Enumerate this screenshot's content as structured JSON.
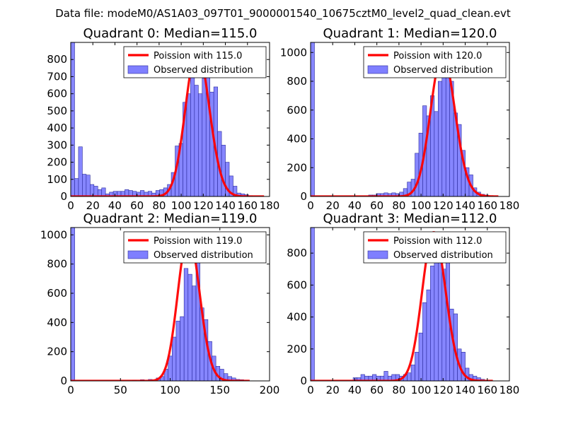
{
  "figure_title": "Data file: modeM0/AS1A03_097T01_9000001540_10675cztM0_level2_quad_clean.evt",
  "colors": {
    "bar_fill": "#7f7fff",
    "bar_edge": "#2a2a9a",
    "poisson_line": "#ff0000",
    "axes": "#000000",
    "background": "#ffffff"
  },
  "chart_data": [
    {
      "type": "bar",
      "title": "Quadrant 0: Median=115.0",
      "median": 115.0,
      "xlim": [
        0,
        180
      ],
      "ylim": [
        0,
        900
      ],
      "xticks": [
        0,
        20,
        40,
        60,
        80,
        100,
        120,
        140,
        160,
        180
      ],
      "yticks": [
        0,
        100,
        200,
        300,
        400,
        500,
        600,
        700,
        800
      ],
      "bin_width": 3.5,
      "bins": [
        [
          0,
          900
        ],
        [
          3.5,
          105
        ],
        [
          7,
          290
        ],
        [
          10.5,
          130
        ],
        [
          14,
          125
        ],
        [
          17.5,
          70
        ],
        [
          21,
          60
        ],
        [
          24.5,
          40
        ],
        [
          28,
          50
        ],
        [
          31.5,
          15
        ],
        [
          35,
          25
        ],
        [
          38.5,
          30
        ],
        [
          42,
          30
        ],
        [
          45.5,
          30
        ],
        [
          49,
          40
        ],
        [
          52.5,
          35
        ],
        [
          56,
          30
        ],
        [
          59.5,
          25
        ],
        [
          63,
          35
        ],
        [
          66.5,
          25
        ],
        [
          70,
          30
        ],
        [
          73.5,
          20
        ],
        [
          77,
          35
        ],
        [
          80.5,
          40
        ],
        [
          84,
          50
        ],
        [
          87.5,
          70
        ],
        [
          91,
          140
        ],
        [
          94.5,
          295
        ],
        [
          98,
          310
        ],
        [
          101.5,
          550
        ],
        [
          105,
          600
        ],
        [
          108.5,
          850
        ],
        [
          112,
          650
        ],
        [
          115.5,
          600
        ],
        [
          119,
          690
        ],
        [
          122.5,
          740
        ],
        [
          126,
          610
        ],
        [
          129.5,
          640
        ],
        [
          133,
          380
        ],
        [
          136.5,
          300
        ],
        [
          140,
          200
        ],
        [
          143.5,
          120
        ],
        [
          147,
          60
        ],
        [
          150.5,
          20
        ],
        [
          154,
          15
        ],
        [
          157.5,
          10
        ],
        [
          161,
          5
        ]
      ],
      "legend": {
        "line_label": "Poission with 115.0",
        "bar_label": "Observed distribution",
        "loc": "upper right"
      },
      "line": {
        "label": "Poission with 115.0",
        "mean": 115.0,
        "peak": 860,
        "x_range": [
          0,
          175
        ]
      }
    },
    {
      "type": "bar",
      "title": "Quadrant 1: Median=120.0",
      "median": 120.0,
      "xlim": [
        0,
        180
      ],
      "ylim": [
        0,
        1070
      ],
      "xticks": [
        0,
        20,
        40,
        60,
        80,
        100,
        120,
        140,
        160,
        180
      ],
      "yticks": [
        0,
        200,
        400,
        600,
        800,
        1000
      ],
      "bin_width": 3.5,
      "bins": [
        [
          0,
          1070
        ],
        [
          52.5,
          10
        ],
        [
          56,
          10
        ],
        [
          59.5,
          20
        ],
        [
          63,
          20
        ],
        [
          66.5,
          25
        ],
        [
          70,
          20
        ],
        [
          73.5,
          25
        ],
        [
          77,
          20
        ],
        [
          80.5,
          30
        ],
        [
          84,
          55
        ],
        [
          87.5,
          100
        ],
        [
          91,
          120
        ],
        [
          94.5,
          300
        ],
        [
          98,
          440
        ],
        [
          101.5,
          630
        ],
        [
          105,
          560
        ],
        [
          108.5,
          700
        ],
        [
          112,
          590
        ],
        [
          115.5,
          800
        ],
        [
          119,
          1000
        ],
        [
          122.5,
          920
        ],
        [
          126,
          800
        ],
        [
          129.5,
          580
        ],
        [
          133,
          500
        ],
        [
          136.5,
          320
        ],
        [
          140,
          200
        ],
        [
          143.5,
          150
        ],
        [
          147,
          60
        ],
        [
          150.5,
          30
        ],
        [
          154,
          15
        ],
        [
          157.5,
          10
        ]
      ],
      "legend": {
        "line_label": "Poission with 120.0",
        "bar_label": "Observed distribution",
        "loc": "upper right"
      },
      "line": {
        "label": "Poission with 120.0",
        "mean": 120.0,
        "peak": 990,
        "x_range": [
          0,
          170
        ]
      }
    },
    {
      "type": "bar",
      "title": "Quadrant 2: Median=119.0",
      "median": 119.0,
      "xlim": [
        0,
        200
      ],
      "ylim": [
        0,
        1050
      ],
      "xticks": [
        0,
        50,
        100,
        150,
        200
      ],
      "yticks": [
        0,
        200,
        400,
        600,
        800,
        1000
      ],
      "bin_width": 4,
      "bins": [
        [
          0,
          1050
        ],
        [
          62,
          5
        ],
        [
          70,
          8
        ],
        [
          78,
          10
        ],
        [
          86,
          20
        ],
        [
          90,
          30
        ],
        [
          94,
          80
        ],
        [
          98,
          170
        ],
        [
          102,
          300
        ],
        [
          106,
          410
        ],
        [
          110,
          440
        ],
        [
          114,
          770
        ],
        [
          118,
          730
        ],
        [
          122,
          650
        ],
        [
          126,
          850
        ],
        [
          130,
          500
        ],
        [
          134,
          420
        ],
        [
          138,
          270
        ],
        [
          142,
          170
        ],
        [
          146,
          100
        ],
        [
          150,
          80
        ],
        [
          154,
          50
        ],
        [
          158,
          30
        ],
        [
          162,
          20
        ],
        [
          166,
          10
        ],
        [
          170,
          8
        ],
        [
          174,
          5
        ]
      ],
      "legend": {
        "line_label": "Poission with 119.0",
        "bar_label": "Observed distribution",
        "loc": "upper right"
      },
      "line": {
        "label": "Poission with 119.0",
        "mean": 119.0,
        "peak": 1000,
        "x_range": [
          0,
          180
        ]
      }
    },
    {
      "type": "bar",
      "title": "Quadrant 3: Median=112.0",
      "median": 112.0,
      "xlim": [
        0,
        180
      ],
      "ylim": [
        0,
        960
      ],
      "xticks": [
        0,
        20,
        40,
        60,
        80,
        100,
        120,
        140,
        160,
        180
      ],
      "yticks": [
        0,
        200,
        400,
        600,
        800
      ],
      "bin_width": 3.5,
      "bins": [
        [
          0,
          960
        ],
        [
          38.5,
          20
        ],
        [
          42,
          20
        ],
        [
          45.5,
          40
        ],
        [
          49,
          30
        ],
        [
          52.5,
          30
        ],
        [
          56,
          40
        ],
        [
          59.5,
          30
        ],
        [
          63,
          30
        ],
        [
          66.5,
          60
        ],
        [
          70,
          30
        ],
        [
          73.5,
          40
        ],
        [
          77,
          40
        ],
        [
          80.5,
          30
        ],
        [
          84,
          40
        ],
        [
          87.5,
          50
        ],
        [
          91,
          100
        ],
        [
          94.5,
          180
        ],
        [
          98,
          300
        ],
        [
          101.5,
          490
        ],
        [
          105,
          570
        ],
        [
          108.5,
          720
        ],
        [
          112,
          900
        ],
        [
          115.5,
          930
        ],
        [
          119,
          700
        ],
        [
          122.5,
          830
        ],
        [
          126,
          450
        ],
        [
          129.5,
          420
        ],
        [
          133,
          200
        ],
        [
          136.5,
          180
        ],
        [
          140,
          80
        ],
        [
          143.5,
          40
        ],
        [
          147,
          30
        ],
        [
          150.5,
          20
        ],
        [
          154,
          10
        ]
      ],
      "legend": {
        "line_label": "Poission with 112.0",
        "bar_label": "Observed distribution",
        "loc": "upper right"
      },
      "line": {
        "label": "Poission with 112.0",
        "mean": 112.0,
        "peak": 930,
        "x_range": [
          0,
          165
        ]
      }
    }
  ]
}
